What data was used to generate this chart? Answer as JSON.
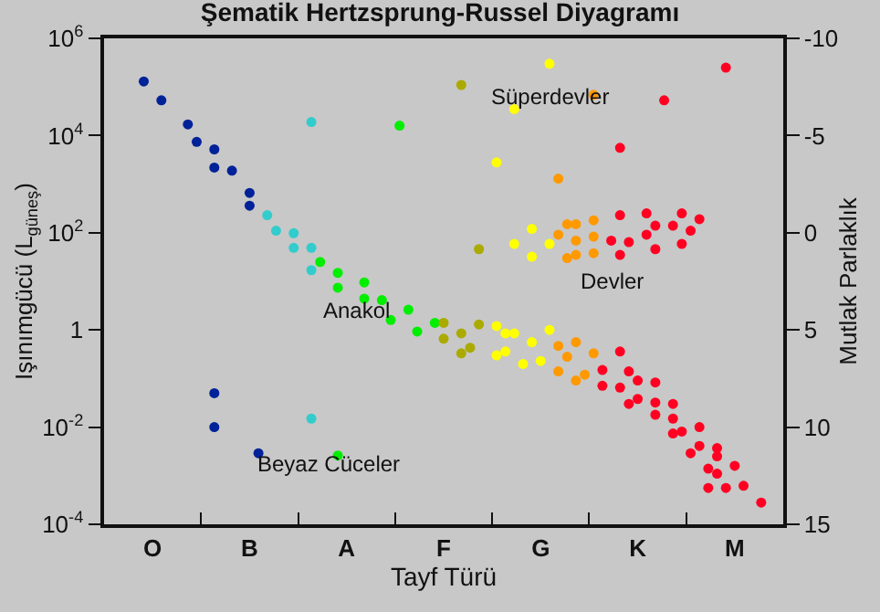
{
  "chart_data": {
    "type": "scatter",
    "title": "Şematik Hertzsprung-Russel Diyagramı",
    "xlabel": "Tayf Türü",
    "ylabel": "Işınımgücü (L$_{güneş}$)",
    "y2label": "Mutlak Parlaklık",
    "log": "y",
    "grid": false,
    "marker": "circle",
    "categories": [
      null,
      null,
      null,
      null,
      null,
      "O",
      null,
      null,
      null,
      null,
      null,
      null,
      null,
      null,
      null,
      null,
      "B",
      null,
      null,
      null,
      null,
      null,
      null,
      null,
      null,
      null,
      null,
      "A",
      null,
      null,
      null,
      null,
      null,
      null,
      null,
      null,
      null,
      null,
      "F",
      null,
      null,
      null,
      null,
      null,
      null,
      null,
      null,
      null,
      null,
      "G",
      null,
      null,
      null,
      null,
      null,
      null,
      null,
      null,
      null,
      null,
      "K",
      null,
      null,
      null,
      null,
      null,
      null,
      null,
      null,
      null,
      null,
      "M",
      null,
      null,
      null,
      null,
      null
    ],
    "ylim": [
      0.0001,
      1000000
    ],
    "yticks": [
      {
        "value": 0.0001,
        "label": "10$^{-4}$"
      },
      {
        "value": 0.01,
        "label": "10$^{-2}$"
      },
      1,
      {
        "value": 100,
        "label": "10$^{2}$"
      },
      {
        "value": 10000,
        "label": "10$^{4}$"
      },
      {
        "value": 1000000,
        "label": "10$^{6}$"
      }
    ],
    "y2lim": [
      15,
      -10
    ],
    "y2ticks": [
      -10,
      -5,
      0,
      5,
      10,
      15
    ],
    "annotations": [
      "Süperdevler",
      "Devler",
      "Anakol",
      "Beyaz Cüceler"
    ],
    "series": [
      {
        "color": "#002299",
        "values": [
          null,
          null,
          null,
          null,
          130000,
          null,
          53000,
          null,
          null,
          17000,
          7400,
          null,
          5200,
          null,
          1900,
          null,
          660,
          0.0029,
          null,
          null,
          null,
          null,
          null,
          null,
          null,
          null,
          null,
          null,
          null,
          null,
          null,
          null,
          null,
          null,
          null,
          null,
          null,
          null,
          null,
          null,
          null,
          null,
          null,
          null,
          null,
          null,
          null,
          null,
          null,
          null,
          null,
          null,
          null,
          null,
          null,
          null,
          null,
          null,
          null,
          null,
          null,
          null,
          null,
          null,
          null,
          null,
          null,
          null,
          null,
          null,
          null,
          null,
          null,
          null,
          null,
          null,
          null
        ]
      },
      {
        "color": "#002299",
        "values": [
          null,
          null,
          null,
          null,
          null,
          null,
          null,
          null,
          null,
          null,
          null,
          null,
          2200,
          null,
          null,
          null,
          360,
          null,
          null,
          null,
          null,
          null,
          null,
          null,
          null,
          null,
          null,
          null,
          null,
          null,
          null,
          null,
          null,
          null,
          null,
          null,
          null,
          null,
          null,
          null,
          null,
          null,
          null,
          null,
          null,
          null,
          null,
          null,
          null,
          null,
          null,
          null,
          null,
          null,
          null,
          null,
          null,
          null,
          null,
          null,
          null,
          null,
          null,
          null,
          null,
          null,
          null,
          null,
          null,
          null,
          null,
          null,
          null,
          null,
          null,
          null,
          null
        ]
      },
      {
        "color": "#002299",
        "values": [
          null,
          null,
          null,
          null,
          null,
          null,
          null,
          null,
          null,
          null,
          null,
          null,
          0.05,
          null,
          null,
          null,
          null,
          null,
          null,
          null,
          null,
          null,
          null,
          null,
          null,
          null,
          null,
          null,
          null,
          null,
          null,
          null,
          null,
          null,
          null,
          null,
          null,
          null,
          null,
          null,
          null,
          null,
          null,
          null,
          null,
          null,
          null,
          null,
          null,
          null,
          null,
          null,
          null,
          null,
          null,
          null,
          null,
          null,
          null,
          null,
          null,
          null,
          null,
          null,
          null,
          null,
          null,
          null,
          null,
          null,
          null,
          null,
          null,
          null,
          null,
          null,
          null
        ]
      },
      {
        "color": "#002299",
        "values": [
          null,
          null,
          null,
          null,
          null,
          null,
          null,
          null,
          null,
          null,
          null,
          null,
          0.01,
          null,
          null,
          null,
          null,
          null,
          null,
          null,
          null,
          null,
          null,
          null,
          null,
          null,
          null,
          null,
          null,
          null,
          null,
          null,
          null,
          null,
          null,
          null,
          null,
          null,
          null,
          null,
          null,
          null,
          null,
          null,
          null,
          null,
          null,
          null,
          null,
          null,
          null,
          null,
          null,
          null,
          null,
          null,
          null,
          null,
          null,
          null,
          null,
          null,
          null,
          null,
          null,
          null,
          null,
          null,
          null,
          null,
          null,
          null,
          null,
          null,
          null,
          null,
          null
        ]
      },
      {
        "color": "#33cccc",
        "values": [
          null,
          null,
          null,
          null,
          null,
          null,
          null,
          null,
          null,
          null,
          null,
          null,
          null,
          null,
          null,
          null,
          null,
          null,
          230,
          110,
          null,
          98,
          null,
          19000,
          null,
          null,
          null,
          null,
          null,
          null,
          null,
          null,
          null,
          null,
          null,
          null,
          null,
          null,
          null,
          null,
          null,
          null,
          null,
          null,
          null,
          null,
          null,
          null,
          null,
          null,
          null,
          null,
          null,
          null,
          null,
          null,
          null,
          null,
          null,
          null,
          null,
          null,
          null,
          null,
          null,
          null,
          null,
          null,
          null,
          null,
          null,
          null,
          null,
          null,
          null,
          null,
          null
        ]
      },
      {
        "color": "#33cccc",
        "values": [
          null,
          null,
          null,
          null,
          null,
          null,
          null,
          null,
          null,
          null,
          null,
          null,
          null,
          null,
          null,
          null,
          null,
          null,
          null,
          null,
          null,
          49,
          null,
          49,
          null,
          null,
          null,
          null,
          null,
          null,
          null,
          null,
          null,
          null,
          null,
          null,
          null,
          null,
          null,
          null,
          null,
          null,
          null,
          null,
          null,
          null,
          null,
          null,
          null,
          null,
          null,
          null,
          null,
          null,
          null,
          null,
          null,
          null,
          null,
          null,
          null,
          null,
          null,
          null,
          null,
          null,
          null,
          null,
          null,
          null,
          null,
          null,
          null,
          null,
          null,
          null,
          null
        ]
      },
      {
        "color": "#33cccc",
        "values": [
          null,
          null,
          null,
          null,
          null,
          null,
          null,
          null,
          null,
          null,
          null,
          null,
          null,
          null,
          null,
          null,
          null,
          null,
          null,
          null,
          null,
          null,
          null,
          17,
          null,
          null,
          null,
          null,
          null,
          null,
          null,
          null,
          null,
          null,
          null,
          null,
          null,
          null,
          null,
          null,
          null,
          null,
          null,
          null,
          null,
          null,
          null,
          null,
          null,
          null,
          null,
          null,
          null,
          null,
          null,
          null,
          null,
          null,
          null,
          null,
          null,
          null,
          null,
          null,
          null,
          null,
          null,
          null,
          null,
          null,
          null,
          null,
          null,
          null,
          null,
          null,
          null
        ]
      },
      {
        "color": "#33cccc",
        "values": [
          null,
          null,
          null,
          null,
          null,
          null,
          null,
          null,
          null,
          null,
          null,
          null,
          null,
          null,
          null,
          null,
          null,
          null,
          null,
          null,
          null,
          null,
          null,
          0.015,
          null,
          null,
          null,
          null,
          null,
          null,
          null,
          null,
          null,
          null,
          null,
          null,
          null,
          null,
          null,
          null,
          null,
          null,
          null,
          null,
          null,
          null,
          null,
          null,
          null,
          null,
          null,
          null,
          null,
          null,
          null,
          null,
          null,
          null,
          null,
          null,
          null,
          null,
          null,
          null,
          null,
          null,
          null,
          null,
          null,
          null,
          null,
          null,
          null,
          null,
          null,
          null,
          null
        ]
      },
      {
        "color": "#00ee00",
        "values": [
          null,
          null,
          null,
          null,
          null,
          null,
          null,
          null,
          null,
          null,
          null,
          null,
          null,
          null,
          null,
          null,
          null,
          null,
          null,
          null,
          null,
          null,
          null,
          null,
          25,
          null,
          15,
          null,
          null,
          9.5,
          null,
          4.1,
          1.6,
          16000,
          2.6,
          0.93,
          null,
          1.4,
          null,
          null,
          null,
          null,
          null,
          null,
          null,
          null,
          null,
          null,
          null,
          null,
          null,
          null,
          null,
          null,
          null,
          null,
          null,
          null,
          null,
          null,
          null,
          null,
          null,
          null,
          null,
          null,
          null,
          null,
          null,
          null,
          null,
          null,
          null,
          null,
          null,
          null,
          null
        ]
      },
      {
        "color": "#00ee00",
        "values": [
          null,
          null,
          null,
          null,
          null,
          null,
          null,
          null,
          null,
          null,
          null,
          null,
          null,
          null,
          null,
          null,
          null,
          null,
          null,
          null,
          null,
          null,
          null,
          null,
          null,
          null,
          7.4,
          null,
          null,
          4.4,
          null,
          null,
          null,
          null,
          null,
          null,
          null,
          null,
          null,
          null,
          null,
          null,
          null,
          null,
          null,
          null,
          null,
          null,
          null,
          null,
          null,
          null,
          null,
          null,
          null,
          null,
          null,
          null,
          null,
          null,
          null,
          null,
          null,
          null,
          null,
          null,
          null,
          null,
          null,
          null,
          null,
          null,
          null,
          null,
          null,
          null,
          null
        ]
      },
      {
        "color": "#00ee00",
        "values": [
          null,
          null,
          null,
          null,
          null,
          null,
          null,
          null,
          null,
          null,
          null,
          null,
          null,
          null,
          null,
          null,
          null,
          null,
          null,
          null,
          null,
          null,
          null,
          null,
          null,
          null,
          0.0026,
          null,
          null,
          null,
          null,
          null,
          null,
          null,
          null,
          null,
          null,
          null,
          null,
          null,
          null,
          null,
          null,
          null,
          null,
          null,
          null,
          null,
          null,
          null,
          null,
          null,
          null,
          null,
          null,
          null,
          null,
          null,
          null,
          null,
          null,
          null,
          null,
          null,
          null,
          null,
          null,
          null,
          null,
          null,
          null,
          null,
          null,
          null,
          null,
          null,
          null
        ]
      },
      {
        "color": "#aaaa00",
        "values": [
          null,
          null,
          null,
          null,
          null,
          null,
          null,
          null,
          null,
          null,
          null,
          null,
          null,
          null,
          null,
          null,
          null,
          null,
          null,
          null,
          null,
          null,
          null,
          null,
          null,
          null,
          null,
          null,
          null,
          null,
          null,
          null,
          null,
          null,
          null,
          null,
          null,
          null,
          1.4,
          null,
          110000,
          0.43,
          46,
          null,
          null,
          null,
          null,
          null,
          null,
          null,
          null,
          null,
          null,
          null,
          null,
          null,
          null,
          null,
          null,
          null,
          null,
          null,
          null,
          null,
          null,
          null,
          null,
          null,
          null,
          null,
          null,
          null,
          null,
          null,
          null,
          null,
          null
        ]
      },
      {
        "color": "#aaaa00",
        "values": [
          null,
          null,
          null,
          null,
          null,
          null,
          null,
          null,
          null,
          null,
          null,
          null,
          null,
          null,
          null,
          null,
          null,
          null,
          null,
          null,
          null,
          null,
          null,
          null,
          null,
          null,
          null,
          null,
          null,
          null,
          null,
          null,
          null,
          null,
          null,
          null,
          null,
          null,
          0.66,
          null,
          0.85,
          null,
          1.3,
          null,
          null,
          null,
          null,
          null,
          null,
          null,
          null,
          null,
          null,
          null,
          null,
          null,
          null,
          null,
          null,
          null,
          null,
          null,
          null,
          null,
          null,
          null,
          null,
          null,
          null,
          null,
          null,
          null,
          null,
          null,
          null,
          null,
          null
        ]
      },
      {
        "color": "#aaaa00",
        "values": [
          null,
          null,
          null,
          null,
          null,
          null,
          null,
          null,
          null,
          null,
          null,
          null,
          null,
          null,
          null,
          null,
          null,
          null,
          null,
          null,
          null,
          null,
          null,
          null,
          null,
          null,
          null,
          null,
          null,
          null,
          null,
          null,
          null,
          null,
          null,
          null,
          null,
          null,
          null,
          null,
          0.33,
          null,
          null,
          null,
          null,
          null,
          null,
          null,
          null,
          null,
          null,
          null,
          null,
          null,
          null,
          null,
          null,
          null,
          null,
          null,
          null,
          null,
          null,
          null,
          null,
          null,
          null,
          null,
          null,
          null,
          null,
          null,
          null,
          null,
          null,
          null,
          null
        ]
      },
      {
        "color": "#ffff00",
        "values": [
          null,
          null,
          null,
          null,
          null,
          null,
          null,
          null,
          null,
          null,
          null,
          null,
          null,
          null,
          null,
          null,
          null,
          null,
          null,
          null,
          null,
          null,
          null,
          null,
          null,
          null,
          null,
          null,
          null,
          null,
          null,
          null,
          null,
          null,
          null,
          null,
          null,
          null,
          null,
          null,
          null,
          null,
          null,
          null,
          2800,
          0.85,
          35000,
          0.2,
          120,
          0.23,
          300000,
          null,
          null,
          null,
          null,
          null,
          null,
          null,
          null,
          null,
          null,
          null,
          null,
          null,
          null,
          null,
          null,
          null,
          null,
          null,
          null,
          null,
          null,
          null,
          null,
          null,
          null
        ]
      },
      {
        "color": "#ffff00",
        "values": [
          null,
          null,
          null,
          null,
          null,
          null,
          null,
          null,
          null,
          null,
          null,
          null,
          null,
          null,
          null,
          null,
          null,
          null,
          null,
          null,
          null,
          null,
          null,
          null,
          null,
          null,
          null,
          null,
          null,
          null,
          null,
          null,
          null,
          null,
          null,
          null,
          null,
          null,
          null,
          null,
          null,
          null,
          null,
          null,
          1.2,
          0.36,
          59,
          null,
          32,
          null,
          59,
          null,
          null,
          null,
          null,
          null,
          null,
          null,
          null,
          null,
          null,
          null,
          null,
          null,
          null,
          null,
          null,
          null,
          null,
          null,
          null,
          null,
          null,
          null,
          null,
          null,
          null
        ]
      },
      {
        "color": "#ffff00",
        "values": [
          null,
          null,
          null,
          null,
          null,
          null,
          null,
          null,
          null,
          null,
          null,
          null,
          null,
          null,
          null,
          null,
          null,
          null,
          null,
          null,
          null,
          null,
          null,
          null,
          null,
          null,
          null,
          null,
          null,
          null,
          null,
          null,
          null,
          null,
          null,
          null,
          null,
          null,
          null,
          null,
          null,
          null,
          null,
          null,
          0.3,
          null,
          0.85,
          null,
          0.56,
          null,
          1.0,
          null,
          null,
          null,
          null,
          null,
          null,
          null,
          null,
          null,
          null,
          null,
          null,
          null,
          null,
          null,
          null,
          null,
          null,
          null,
          null,
          null,
          null,
          null,
          null,
          null,
          null
        ]
      },
      {
        "color": "#ff9900",
        "values": [
          null,
          null,
          null,
          null,
          null,
          null,
          null,
          null,
          null,
          null,
          null,
          null,
          null,
          null,
          null,
          null,
          null,
          null,
          null,
          null,
          null,
          null,
          null,
          null,
          null,
          null,
          null,
          null,
          null,
          null,
          null,
          null,
          null,
          null,
          null,
          null,
          null,
          null,
          null,
          null,
          null,
          null,
          null,
          null,
          null,
          null,
          null,
          null,
          null,
          null,
          null,
          1300,
          150,
          150,
          0.12,
          69000,
          null,
          null,
          null,
          null,
          null,
          null,
          null,
          null,
          null,
          null,
          null,
          null,
          null,
          null,
          null,
          null,
          null,
          null,
          null,
          null,
          null
        ]
      },
      {
        "color": "#ff9900",
        "values": [
          null,
          null,
          null,
          null,
          null,
          null,
          null,
          null,
          null,
          null,
          null,
          null,
          null,
          null,
          null,
          null,
          null,
          null,
          null,
          null,
          null,
          null,
          null,
          null,
          null,
          null,
          null,
          null,
          null,
          null,
          null,
          null,
          null,
          null,
          null,
          null,
          null,
          null,
          null,
          null,
          null,
          null,
          null,
          null,
          null,
          null,
          null,
          null,
          null,
          null,
          null,
          91,
          30,
          69,
          null,
          null,
          null,
          null,
          null,
          null,
          null,
          null,
          null,
          null,
          null,
          null,
          null,
          null,
          null,
          null,
          null,
          null,
          null,
          null,
          null,
          null,
          null
        ]
      },
      {
        "color": "#ff9900",
        "values": [
          null,
          null,
          null,
          null,
          null,
          null,
          null,
          null,
          null,
          null,
          null,
          null,
          null,
          null,
          null,
          null,
          null,
          null,
          null,
          null,
          null,
          null,
          null,
          null,
          null,
          null,
          null,
          null,
          null,
          null,
          null,
          null,
          null,
          null,
          null,
          null,
          null,
          null,
          null,
          null,
          null,
          null,
          null,
          null,
          null,
          null,
          null,
          null,
          null,
          null,
          null,
          0.47,
          0.28,
          35,
          null,
          180,
          null,
          null,
          null,
          null,
          null,
          null,
          null,
          null,
          null,
          null,
          null,
          null,
          null,
          null,
          null,
          null,
          null,
          null,
          null,
          null,
          null
        ]
      },
      {
        "color": "#ff9900",
        "values": [
          null,
          null,
          null,
          null,
          null,
          null,
          null,
          null,
          null,
          null,
          null,
          null,
          null,
          null,
          null,
          null,
          null,
          null,
          null,
          null,
          null,
          null,
          null,
          null,
          null,
          null,
          null,
          null,
          null,
          null,
          null,
          null,
          null,
          null,
          null,
          null,
          null,
          null,
          null,
          null,
          null,
          null,
          null,
          null,
          null,
          null,
          null,
          null,
          null,
          null,
          null,
          0.14,
          null,
          0.56,
          null,
          83,
          null,
          null,
          null,
          null,
          null,
          null,
          null,
          null,
          null,
          null,
          null,
          null,
          null,
          null,
          null,
          null,
          null,
          null,
          null,
          null,
          null
        ]
      },
      {
        "color": "#ff9900",
        "values": [
          null,
          null,
          null,
          null,
          null,
          null,
          null,
          null,
          null,
          null,
          null,
          null,
          null,
          null,
          null,
          null,
          null,
          null,
          null,
          null,
          null,
          null,
          null,
          null,
          null,
          null,
          null,
          null,
          null,
          null,
          null,
          null,
          null,
          null,
          null,
          null,
          null,
          null,
          null,
          null,
          null,
          null,
          null,
          null,
          null,
          null,
          null,
          null,
          null,
          null,
          null,
          null,
          null,
          0.091,
          null,
          38,
          null,
          null,
          null,
          null,
          null,
          null,
          null,
          null,
          null,
          null,
          null,
          null,
          null,
          null,
          null,
          null,
          null,
          null,
          null,
          null,
          null
        ]
      },
      {
        "color": "#ff9900",
        "values": [
          null,
          null,
          null,
          null,
          null,
          null,
          null,
          null,
          null,
          null,
          null,
          null,
          null,
          null,
          null,
          null,
          null,
          null,
          null,
          null,
          null,
          null,
          null,
          null,
          null,
          null,
          null,
          null,
          null,
          null,
          null,
          null,
          null,
          null,
          null,
          null,
          null,
          null,
          null,
          null,
          null,
          null,
          null,
          null,
          null,
          null,
          null,
          null,
          null,
          null,
          null,
          null,
          null,
          null,
          null,
          0.33,
          null,
          null,
          null,
          null,
          null,
          null,
          null,
          null,
          null,
          null,
          null,
          null,
          null,
          null,
          null,
          null,
          null,
          null,
          null,
          null,
          null
        ]
      },
      {
        "color": "#ff0022",
        "values": [
          null,
          null,
          null,
          null,
          null,
          null,
          null,
          null,
          null,
          null,
          null,
          null,
          null,
          null,
          null,
          null,
          null,
          null,
          null,
          null,
          null,
          null,
          null,
          null,
          null,
          null,
          null,
          null,
          null,
          null,
          null,
          null,
          null,
          null,
          null,
          null,
          null,
          null,
          null,
          null,
          null,
          null,
          null,
          null,
          null,
          null,
          null,
          null,
          null,
          null,
          null,
          null,
          null,
          null,
          null,
          null,
          0.15,
          69,
          5600,
          64,
          0.091,
          250,
          140,
          53000,
          140,
          250,
          110,
          190,
          0.0014,
          0.0025,
          250000,
          0.0016,
          0.00062,
          null,
          0.00028,
          null,
          null
        ]
      },
      {
        "color": "#ff0022",
        "values": [
          null,
          null,
          null,
          null,
          null,
          null,
          null,
          null,
          null,
          null,
          null,
          null,
          null,
          null,
          null,
          null,
          null,
          null,
          null,
          null,
          null,
          null,
          null,
          null,
          null,
          null,
          null,
          null,
          null,
          null,
          null,
          null,
          null,
          null,
          null,
          null,
          null,
          null,
          null,
          null,
          null,
          null,
          null,
          null,
          null,
          null,
          null,
          null,
          null,
          null,
          null,
          null,
          null,
          null,
          null,
          null,
          0.071,
          null,
          230,
          0.14,
          0.038,
          91,
          46,
          null,
          0.03,
          59,
          0.0029,
          0.01,
          0.00056,
          0.0037,
          0.00056,
          null,
          null,
          null,
          null,
          null,
          null
        ]
      },
      {
        "color": "#ff0022",
        "values": [
          null,
          null,
          null,
          null,
          null,
          null,
          null,
          null,
          null,
          null,
          null,
          null,
          null,
          null,
          null,
          null,
          null,
          null,
          null,
          null,
          null,
          null,
          null,
          null,
          null,
          null,
          null,
          null,
          null,
          null,
          null,
          null,
          null,
          null,
          null,
          null,
          null,
          null,
          null,
          null,
          null,
          null,
          null,
          null,
          null,
          null,
          null,
          null,
          null,
          null,
          null,
          null,
          null,
          null,
          null,
          null,
          null,
          null,
          35,
          0.03,
          null,
          null,
          0.083,
          null,
          0.015,
          0.0081,
          null,
          0.0041,
          null,
          0.0011,
          null,
          null,
          null,
          null,
          null,
          null,
          null
        ]
      },
      {
        "color": "#ff0022",
        "values": [
          null,
          null,
          null,
          null,
          null,
          null,
          null,
          null,
          null,
          null,
          null,
          null,
          null,
          null,
          null,
          null,
          null,
          null,
          null,
          null,
          null,
          null,
          null,
          null,
          null,
          null,
          null,
          null,
          null,
          null,
          null,
          null,
          null,
          null,
          null,
          null,
          null,
          null,
          null,
          null,
          null,
          null,
          null,
          null,
          null,
          null,
          null,
          null,
          null,
          null,
          null,
          null,
          null,
          null,
          null,
          null,
          null,
          null,
          0.36,
          null,
          null,
          null,
          0.032,
          null,
          0.0074,
          null,
          null,
          null,
          null,
          null,
          null,
          null,
          null,
          null,
          null,
          null,
          null
        ]
      },
      {
        "color": "#ff0022",
        "values": [
          null,
          null,
          null,
          null,
          null,
          null,
          null,
          null,
          null,
          null,
          null,
          null,
          null,
          null,
          null,
          null,
          null,
          null,
          null,
          null,
          null,
          null,
          null,
          null,
          null,
          null,
          null,
          null,
          null,
          null,
          null,
          null,
          null,
          null,
          null,
          null,
          null,
          null,
          null,
          null,
          null,
          null,
          null,
          null,
          null,
          null,
          null,
          null,
          null,
          null,
          null,
          null,
          null,
          null,
          null,
          null,
          null,
          null,
          0.065,
          null,
          null,
          null,
          0.018,
          null,
          null,
          null,
          null,
          null,
          null,
          null,
          null,
          null,
          null,
          null,
          null,
          null,
          null
        ]
      }
    ]
  }
}
